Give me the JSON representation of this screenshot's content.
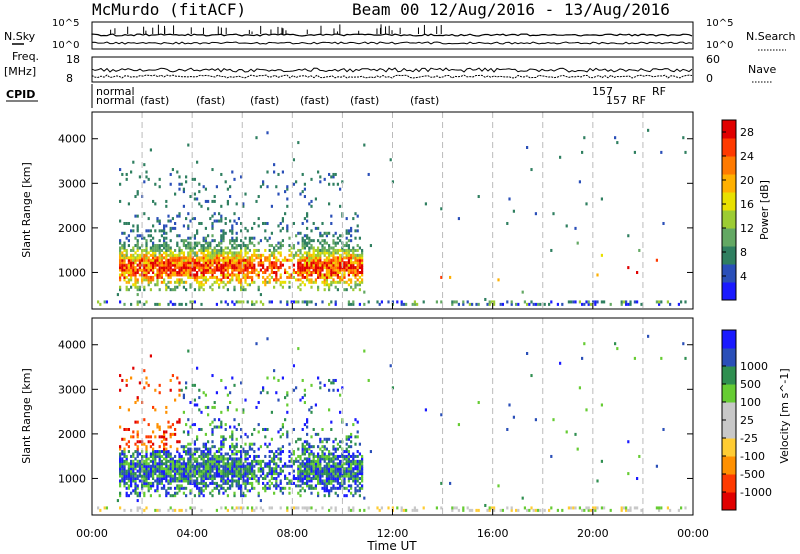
{
  "header": {
    "title": "McMurdo (fitACF)",
    "subtitle": "Beam 00  12/Aug/2016 - 13/Aug/2016"
  },
  "strips": {
    "nsky_label": "N.Sky",
    "nsearch_label": "N.Search",
    "nsky_ticks": [
      "10^5",
      "10^0"
    ],
    "nsearch_ticks": [
      "10^5",
      "10^0"
    ],
    "freq_label": "Freq.",
    "freq_unit": "[MHz]",
    "freq_ticks": [
      "18",
      "8"
    ],
    "nave_label": "Nave",
    "nave_ticks": [
      "60",
      "0"
    ],
    "cpid_label": "CPID",
    "cpid_names": [
      "normal",
      "normal",
      "(fast)",
      "(fast)",
      "(fast)",
      "(fast)",
      "(fast)",
      "(fast)",
      "157",
      "RF",
      "157",
      "RF"
    ]
  },
  "colors": {
    "power": [
      "#1a1aff",
      "#2a4fb8",
      "#2f7f60",
      "#63a863",
      "#9ccc33",
      "#e8e000",
      "#ffb000",
      "#ff7a00",
      "#ff3a00",
      "#e00000"
    ],
    "velocity": [
      "#e00000",
      "#ff3a00",
      "#ff9000",
      "#ffcc33",
      "#c8c8c8",
      "#c8c8c8",
      "#66cc33",
      "#2f8f50",
      "#2a4fb8",
      "#1a1aff"
    ]
  },
  "chart_data": [
    {
      "type": "heatmap",
      "name": "power",
      "xlabel": "",
      "ylabel": "Slant Range [km]",
      "xlim": [
        0,
        24
      ],
      "ylim": [
        180,
        4600
      ],
      "yticks": [
        1000,
        2000,
        3000,
        4000
      ],
      "colorbar": {
        "label": "Power [dB]",
        "ticks": [
          "4",
          "8",
          "12",
          "16",
          "20",
          "24",
          "28"
        ],
        "range": [
          0,
          30
        ]
      }
    },
    {
      "type": "heatmap",
      "name": "velocity",
      "xlabel": "Time UT",
      "ylabel": "Slant Range [km]",
      "xlim": [
        0,
        24
      ],
      "ylim": [
        180,
        4600
      ],
      "yticks": [
        1000,
        2000,
        3000,
        4000
      ],
      "xticks": [
        "00:00",
        "04:00",
        "08:00",
        "12:00",
        "16:00",
        "20:00",
        "00:00"
      ],
      "colorbar": {
        "label": "Velocity [m s^-1]",
        "ticks": [
          "-1000",
          "-500",
          "-100",
          "-25",
          "25",
          "100",
          "500",
          "1000"
        ]
      }
    }
  ]
}
